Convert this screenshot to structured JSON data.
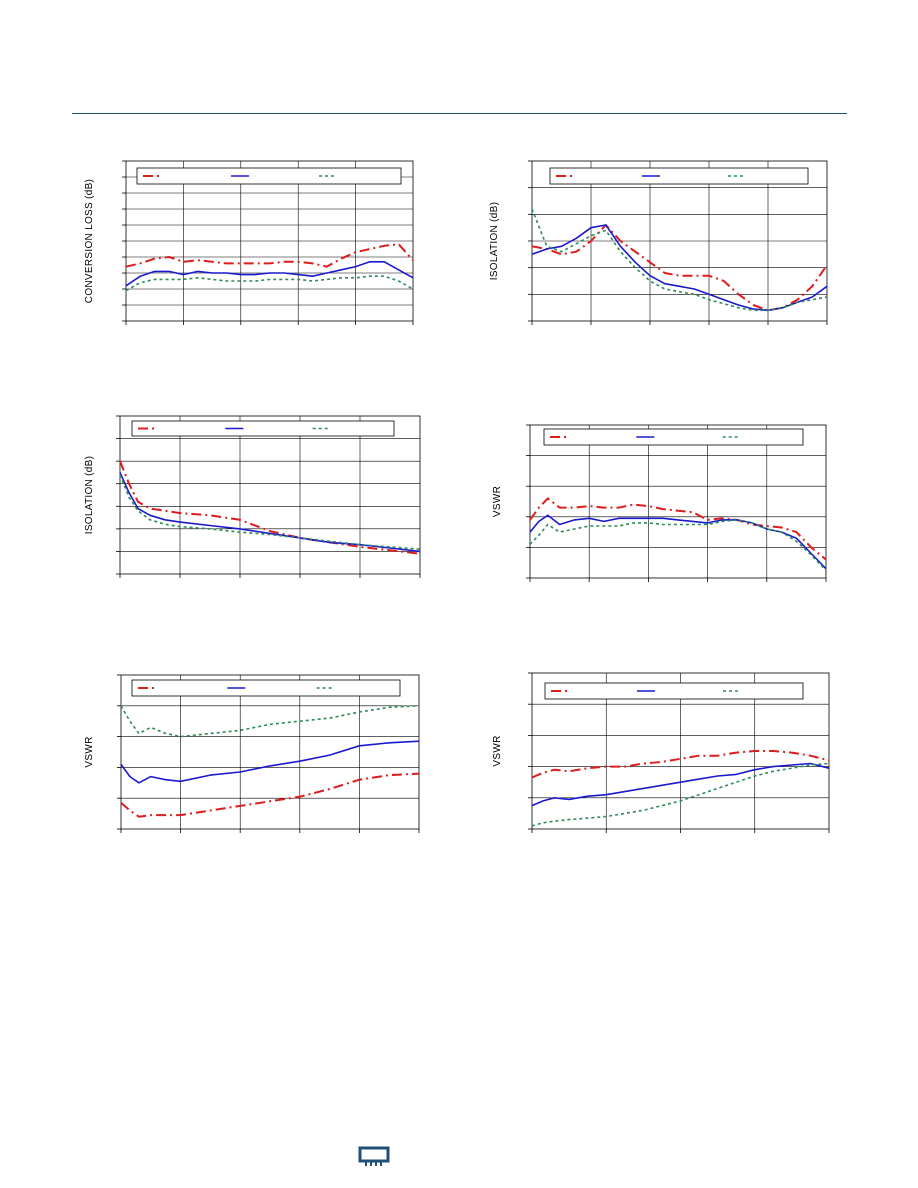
{
  "colors": {
    "rule": "#1f4e79",
    "grid": "#000000",
    "series_red": "#dd1c1c",
    "series_blue": "#1a1acc",
    "series_green": "#2e8b57",
    "logo": "#1f4e79"
  },
  "logo": {
    "icon": "chip-logo-icon"
  },
  "chart_data": [
    {
      "id": "chart1",
      "type": "line",
      "title": "",
      "xlabel": "",
      "ylabel": "CONVERSION LOSS (dB)",
      "xlim": [
        0,
        5
      ],
      "ylim": [
        0,
        10
      ],
      "grid": true,
      "legend_placement": "top",
      "series": [
        {
          "color": "#dd1c1c",
          "dash": "10,4,2,4",
          "width": 2,
          "x": [
            0,
            0.25,
            0.5,
            0.75,
            1,
            1.25,
            1.5,
            1.75,
            2,
            2.25,
            2.5,
            2.75,
            3,
            3.25,
            3.5,
            3.75,
            4,
            4.25,
            4.5,
            4.75,
            5
          ],
          "y": [
            3.4,
            3.6,
            3.9,
            4.0,
            3.7,
            3.8,
            3.7,
            3.6,
            3.6,
            3.6,
            3.6,
            3.7,
            3.7,
            3.6,
            3.4,
            3.9,
            4.3,
            4.5,
            4.7,
            4.8,
            3.8
          ]
        },
        {
          "color": "#1a1acc",
          "dash": "",
          "width": 1.6,
          "x": [
            0,
            0.25,
            0.5,
            0.75,
            1,
            1.25,
            1.5,
            1.75,
            2,
            2.25,
            2.5,
            2.75,
            3,
            3.25,
            3.5,
            3.75,
            4,
            4.25,
            4.5,
            4.75,
            5
          ],
          "y": [
            2.2,
            2.8,
            3.1,
            3.1,
            2.9,
            3.1,
            3.0,
            3.0,
            2.9,
            2.9,
            3.0,
            3.0,
            2.9,
            2.8,
            3.0,
            3.2,
            3.4,
            3.7,
            3.7,
            3.2,
            2.7
          ]
        },
        {
          "color": "#2e8b57",
          "dash": "3,3",
          "width": 1.6,
          "x": [
            0,
            0.25,
            0.5,
            0.75,
            1,
            1.25,
            1.5,
            1.75,
            2,
            2.25,
            2.5,
            2.75,
            3,
            3.25,
            3.5,
            3.75,
            4,
            4.25,
            4.5,
            4.75,
            5
          ],
          "y": [
            1.9,
            2.4,
            2.6,
            2.6,
            2.6,
            2.7,
            2.6,
            2.5,
            2.5,
            2.5,
            2.6,
            2.6,
            2.6,
            2.5,
            2.6,
            2.7,
            2.7,
            2.8,
            2.8,
            2.5,
            2.0
          ]
        }
      ]
    },
    {
      "id": "chart2",
      "type": "line",
      "title": "",
      "xlabel": "",
      "ylabel": "ISOLATION (dB)",
      "xlim": [
        0,
        5
      ],
      "ylim": [
        0,
        6
      ],
      "grid": true,
      "legend_placement": "top",
      "series": [
        {
          "color": "#dd1c1c",
          "dash": "10,4,2,4",
          "width": 2,
          "x": [
            0,
            0.25,
            0.5,
            0.75,
            1,
            1.25,
            1.5,
            1.75,
            2,
            2.25,
            2.5,
            2.75,
            3,
            3.25,
            3.5,
            3.75,
            4,
            4.25,
            4.5,
            4.75,
            5
          ],
          "y": [
            2.8,
            2.7,
            2.5,
            2.6,
            3.0,
            3.6,
            3.0,
            2.6,
            2.2,
            1.8,
            1.7,
            1.7,
            1.7,
            1.5,
            1.0,
            0.6,
            0.4,
            0.5,
            0.8,
            1.3,
            2.1
          ]
        },
        {
          "color": "#1a1acc",
          "dash": "",
          "width": 1.6,
          "x": [
            0,
            0.25,
            0.5,
            0.75,
            1,
            1.25,
            1.5,
            1.75,
            2,
            2.25,
            2.5,
            2.75,
            3,
            3.25,
            3.5,
            3.75,
            4,
            4.25,
            4.5,
            4.75,
            5
          ],
          "y": [
            2.5,
            2.7,
            2.8,
            3.1,
            3.5,
            3.6,
            2.8,
            2.2,
            1.7,
            1.4,
            1.3,
            1.2,
            1.0,
            0.8,
            0.6,
            0.45,
            0.4,
            0.5,
            0.7,
            0.9,
            1.3
          ]
        },
        {
          "color": "#2e8b57",
          "dash": "3,3",
          "width": 1.6,
          "x": [
            0,
            0.25,
            0.5,
            0.75,
            1,
            1.25,
            1.5,
            1.75,
            2,
            2.25,
            2.5,
            2.75,
            3,
            3.25,
            3.5,
            3.75,
            4,
            4.25,
            4.5,
            4.75,
            5
          ],
          "y": [
            4.2,
            2.8,
            2.6,
            2.9,
            3.2,
            3.4,
            2.6,
            2.0,
            1.5,
            1.2,
            1.1,
            1.0,
            0.8,
            0.65,
            0.5,
            0.4,
            0.4,
            0.5,
            0.7,
            0.8,
            0.9
          ]
        }
      ]
    },
    {
      "id": "chart3",
      "type": "line",
      "title": "",
      "xlabel": "",
      "ylabel": "ISOLATION (dB)",
      "xlim": [
        0,
        5
      ],
      "ylim": [
        0,
        7
      ],
      "grid": true,
      "legend_placement": "top",
      "series": [
        {
          "color": "#dd1c1c",
          "dash": "10,4,2,4",
          "width": 2,
          "x": [
            0,
            0.15,
            0.3,
            0.5,
            0.75,
            1,
            1.5,
            2,
            2.5,
            3,
            3.5,
            4,
            4.5,
            5
          ],
          "y": [
            5.0,
            4.0,
            3.2,
            2.9,
            2.8,
            2.7,
            2.6,
            2.4,
            1.9,
            1.6,
            1.4,
            1.2,
            1.05,
            0.9
          ]
        },
        {
          "color": "#1a1acc",
          "dash": "",
          "width": 1.6,
          "x": [
            0,
            0.15,
            0.3,
            0.5,
            0.75,
            1,
            1.5,
            2,
            2.5,
            3,
            3.5,
            4,
            4.5,
            5
          ],
          "y": [
            4.5,
            3.6,
            2.9,
            2.6,
            2.4,
            2.3,
            2.15,
            2.0,
            1.8,
            1.6,
            1.4,
            1.3,
            1.15,
            1.0
          ]
        },
        {
          "color": "#2e8b57",
          "dash": "3,3",
          "width": 1.6,
          "x": [
            0,
            0.15,
            0.3,
            0.5,
            0.75,
            1,
            1.5,
            2,
            2.5,
            3,
            3.5,
            4,
            4.5,
            5
          ],
          "y": [
            4.4,
            3.4,
            2.8,
            2.4,
            2.2,
            2.1,
            2.0,
            1.85,
            1.75,
            1.6,
            1.45,
            1.3,
            1.2,
            1.1
          ]
        }
      ]
    },
    {
      "id": "chart4",
      "type": "line",
      "title": "",
      "xlabel": "",
      "ylabel": "VSWR",
      "xlim": [
        0,
        5
      ],
      "ylim": [
        0,
        5
      ],
      "grid": true,
      "legend_placement": "top",
      "series": [
        {
          "color": "#dd1c1c",
          "dash": "10,4,2,4",
          "width": 2,
          "x": [
            0,
            0.15,
            0.3,
            0.5,
            0.75,
            1,
            1.25,
            1.5,
            1.75,
            2,
            2.25,
            2.5,
            2.75,
            3,
            3.25,
            3.5,
            3.75,
            4,
            4.25,
            4.5,
            4.75,
            5
          ],
          "y": [
            1.9,
            2.3,
            2.6,
            2.3,
            2.3,
            2.35,
            2.3,
            2.3,
            2.4,
            2.35,
            2.25,
            2.2,
            2.15,
            1.9,
            1.95,
            1.9,
            1.75,
            1.7,
            1.65,
            1.5,
            1.0,
            0.6
          ]
        },
        {
          "color": "#1a1acc",
          "dash": "",
          "width": 1.6,
          "x": [
            0,
            0.15,
            0.3,
            0.5,
            0.75,
            1,
            1.25,
            1.5,
            1.75,
            2,
            2.25,
            2.5,
            2.75,
            3,
            3.25,
            3.5,
            3.75,
            4,
            4.25,
            4.5,
            4.75,
            5
          ],
          "y": [
            1.5,
            1.85,
            2.05,
            1.75,
            1.9,
            1.95,
            1.85,
            1.95,
            1.95,
            1.95,
            1.95,
            1.9,
            1.85,
            1.8,
            1.9,
            1.9,
            1.8,
            1.6,
            1.5,
            1.3,
            0.8,
            0.3
          ]
        },
        {
          "color": "#2e8b57",
          "dash": "3,3",
          "width": 1.6,
          "x": [
            0,
            0.15,
            0.3,
            0.5,
            0.75,
            1,
            1.25,
            1.5,
            1.75,
            2,
            2.25,
            2.5,
            2.75,
            3,
            3.25,
            3.5,
            3.75,
            4,
            4.25,
            4.5,
            4.75,
            5
          ],
          "y": [
            1.1,
            1.4,
            1.75,
            1.5,
            1.6,
            1.7,
            1.7,
            1.7,
            1.8,
            1.8,
            1.75,
            1.75,
            1.75,
            1.75,
            1.85,
            1.9,
            1.8,
            1.6,
            1.5,
            1.2,
            0.75,
            0.25
          ]
        }
      ]
    },
    {
      "id": "chart5",
      "type": "line",
      "title": "",
      "xlabel": "",
      "ylabel": "VSWR",
      "xlim": [
        0,
        5
      ],
      "ylim": [
        0,
        5
      ],
      "grid": true,
      "legend_placement": "top",
      "series": [
        {
          "color": "#dd1c1c",
          "dash": "10,4,2,4",
          "width": 2,
          "x": [
            0,
            0.15,
            0.3,
            0.5,
            0.75,
            1,
            1.5,
            2,
            2.5,
            3,
            3.5,
            4,
            4.5,
            5
          ],
          "y": [
            0.85,
            0.6,
            0.4,
            0.45,
            0.45,
            0.45,
            0.6,
            0.75,
            0.9,
            1.05,
            1.3,
            1.6,
            1.75,
            1.8
          ]
        },
        {
          "color": "#1a1acc",
          "dash": "",
          "width": 1.6,
          "x": [
            0,
            0.15,
            0.3,
            0.5,
            0.75,
            1,
            1.5,
            2,
            2.5,
            3,
            3.5,
            4,
            4.5,
            5
          ],
          "y": [
            2.1,
            1.7,
            1.5,
            1.7,
            1.6,
            1.55,
            1.75,
            1.85,
            2.05,
            2.2,
            2.4,
            2.7,
            2.8,
            2.85
          ]
        },
        {
          "color": "#2e8b57",
          "dash": "3,3",
          "width": 1.6,
          "x": [
            0,
            0.15,
            0.3,
            0.5,
            0.75,
            1,
            1.5,
            2,
            2.5,
            3,
            3.5,
            4,
            4.5,
            5
          ],
          "y": [
            4.0,
            3.5,
            3.1,
            3.3,
            3.1,
            3.0,
            3.1,
            3.2,
            3.4,
            3.5,
            3.6,
            3.8,
            3.95,
            4.0
          ]
        }
      ]
    },
    {
      "id": "chart6",
      "type": "line",
      "title": "",
      "xlabel": "",
      "ylabel": "VSWR",
      "xlim": [
        0,
        4
      ],
      "ylim": [
        0,
        5
      ],
      "grid": true,
      "legend_placement": "top",
      "series": [
        {
          "color": "#dd1c1c",
          "dash": "10,4,2,4",
          "width": 2,
          "x": [
            0,
            0.15,
            0.3,
            0.5,
            0.75,
            1,
            1.25,
            1.5,
            1.75,
            2,
            2.25,
            2.5,
            2.75,
            3,
            3.25,
            3.5,
            3.75,
            4
          ],
          "y": [
            1.65,
            1.8,
            1.9,
            1.85,
            1.95,
            2.0,
            2.0,
            2.1,
            2.15,
            2.25,
            2.35,
            2.35,
            2.45,
            2.5,
            2.5,
            2.45,
            2.35,
            2.2
          ]
        },
        {
          "color": "#1a1acc",
          "dash": "",
          "width": 1.6,
          "x": [
            0,
            0.15,
            0.3,
            0.5,
            0.75,
            1,
            1.25,
            1.5,
            1.75,
            2,
            2.25,
            2.5,
            2.75,
            3,
            3.25,
            3.5,
            3.75,
            4
          ],
          "y": [
            0.75,
            0.9,
            1.0,
            0.95,
            1.05,
            1.1,
            1.2,
            1.3,
            1.4,
            1.5,
            1.6,
            1.7,
            1.75,
            1.9,
            2.0,
            2.05,
            2.1,
            1.95
          ]
        },
        {
          "color": "#2e8b57",
          "dash": "3,3",
          "width": 1.6,
          "x": [
            0,
            0.15,
            0.3,
            0.5,
            0.75,
            1,
            1.25,
            1.5,
            1.75,
            2,
            2.25,
            2.5,
            2.75,
            3,
            3.25,
            3.5,
            3.75,
            4
          ],
          "y": [
            0.1,
            0.2,
            0.25,
            0.3,
            0.35,
            0.4,
            0.5,
            0.6,
            0.75,
            0.9,
            1.1,
            1.3,
            1.5,
            1.7,
            1.85,
            1.95,
            2.05,
            2.1
          ]
        }
      ]
    }
  ]
}
